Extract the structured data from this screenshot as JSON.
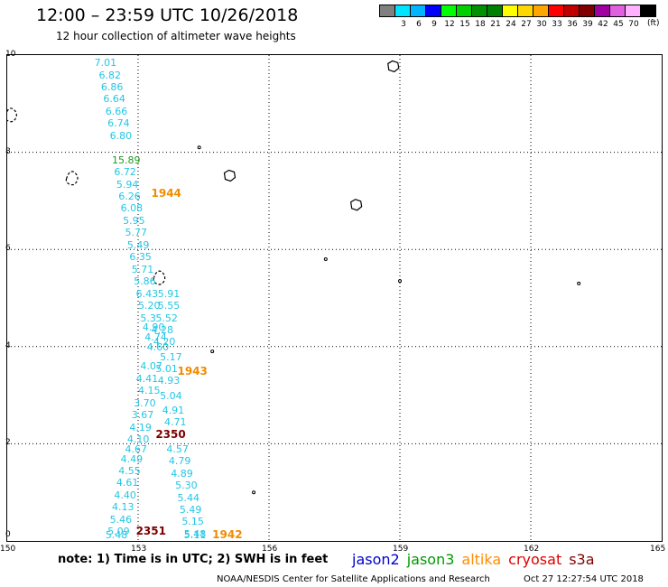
{
  "header": {
    "title": "12:00 – 23:59 UTC 10/26/2018",
    "subtitle": "12 hour collection of altimeter wave heights"
  },
  "colorbar": {
    "unit": "(ft)",
    "swatches": [
      {
        "color": "#808080",
        "label": ""
      },
      {
        "color": "#00e5ff",
        "label": "3"
      },
      {
        "color": "#00b4ff",
        "label": "6"
      },
      {
        "color": "#0000ff",
        "label": "9"
      },
      {
        "color": "#00ff00",
        "label": "12"
      },
      {
        "color": "#00d000",
        "label": "15"
      },
      {
        "color": "#009000",
        "label": "18"
      },
      {
        "color": "#008000",
        "label": "21"
      },
      {
        "color": "#ffff00",
        "label": "24"
      },
      {
        "color": "#ffd700",
        "label": "27"
      },
      {
        "color": "#ffa500",
        "label": "30"
      },
      {
        "color": "#ff0000",
        "label": "33"
      },
      {
        "color": "#c00000",
        "label": "36"
      },
      {
        "color": "#800000",
        "label": "39"
      },
      {
        "color": "#a000a0",
        "label": "42"
      },
      {
        "color": "#e060e0",
        "label": "45"
      },
      {
        "color": "#ffb0ff",
        "label": "70"
      },
      {
        "color": "#000000",
        "label": ""
      }
    ]
  },
  "map": {
    "lon_range": [
      150,
      165
    ],
    "lat_range": [
      0,
      10
    ],
    "lon_ticks": [
      "150",
      "153",
      "156",
      "159",
      "162",
      "165"
    ],
    "lat_ticks": [
      "0",
      "2",
      "4",
      "6",
      "8",
      "10"
    ],
    "colors": {
      "swh": "#22c6e6",
      "swh_green": "#1f9a1f",
      "altika_time": "#f08c00",
      "cryosat_time": "#7a0000"
    },
    "points": [
      {
        "lon": 152.0,
        "lat": 9.85,
        "text": "7.01",
        "cat": "swh"
      },
      {
        "lon": 152.1,
        "lat": 9.6,
        "text": "6.82",
        "cat": "swh"
      },
      {
        "lon": 152.15,
        "lat": 9.35,
        "text": "6.86",
        "cat": "swh"
      },
      {
        "lon": 152.2,
        "lat": 9.1,
        "text": "6.64",
        "cat": "swh"
      },
      {
        "lon": 152.25,
        "lat": 8.85,
        "text": "6.66",
        "cat": "swh"
      },
      {
        "lon": 152.3,
        "lat": 8.6,
        "text": "6.74",
        "cat": "swh"
      },
      {
        "lon": 152.35,
        "lat": 8.35,
        "text": "6.80",
        "cat": "swh"
      },
      {
        "lon": 152.4,
        "lat": 7.85,
        "text": "15.89",
        "cat": "swh_green"
      },
      {
        "lon": 152.45,
        "lat": 7.6,
        "text": "6.72",
        "cat": "swh"
      },
      {
        "lon": 152.5,
        "lat": 7.35,
        "text": "5.94",
        "cat": "swh"
      },
      {
        "lon": 152.55,
        "lat": 7.1,
        "text": "6.26",
        "cat": "swh"
      },
      {
        "lon": 152.6,
        "lat": 6.85,
        "text": "6.08",
        "cat": "swh"
      },
      {
        "lon": 152.65,
        "lat": 6.6,
        "text": "5.95",
        "cat": "swh"
      },
      {
        "lon": 152.7,
        "lat": 6.35,
        "text": "5.77",
        "cat": "swh"
      },
      {
        "lon": 152.75,
        "lat": 6.1,
        "text": "5.49",
        "cat": "swh"
      },
      {
        "lon": 152.8,
        "lat": 5.85,
        "text": "6.35",
        "cat": "swh"
      },
      {
        "lon": 152.85,
        "lat": 5.6,
        "text": "5.71",
        "cat": "swh"
      },
      {
        "lon": 152.9,
        "lat": 5.35,
        "text": "5.86",
        "cat": "swh"
      },
      {
        "lon": 152.95,
        "lat": 5.1,
        "text": "6.43",
        "cat": "swh"
      },
      {
        "lon": 153.0,
        "lat": 4.85,
        "text": "5.20",
        "cat": "swh"
      },
      {
        "lon": 153.05,
        "lat": 4.6,
        "text": "5.3",
        "cat": "swh"
      },
      {
        "lon": 153.1,
        "lat": 4.4,
        "text": "4.90",
        "cat": "swh"
      },
      {
        "lon": 153.15,
        "lat": 4.2,
        "text": "4.74",
        "cat": "swh"
      },
      {
        "lon": 153.2,
        "lat": 4.0,
        "text": "4.60",
        "cat": "swh"
      },
      {
        "lon": 153.05,
        "lat": 3.6,
        "text": "4.07",
        "cat": "swh"
      },
      {
        "lon": 152.95,
        "lat": 3.35,
        "text": "4.41",
        "cat": "swh"
      },
      {
        "lon": 153.0,
        "lat": 3.1,
        "text": "4.15",
        "cat": "swh"
      },
      {
        "lon": 152.9,
        "lat": 2.85,
        "text": "3.70",
        "cat": "swh"
      },
      {
        "lon": 152.85,
        "lat": 2.6,
        "text": "3.67",
        "cat": "swh"
      },
      {
        "lon": 152.8,
        "lat": 2.35,
        "text": "4.19",
        "cat": "swh"
      },
      {
        "lon": 152.75,
        "lat": 2.1,
        "text": "4.10",
        "cat": "swh"
      },
      {
        "lon": 152.7,
        "lat": 1.9,
        "text": "4.67",
        "cat": "swh"
      },
      {
        "lon": 152.6,
        "lat": 1.7,
        "text": "4.49",
        "cat": "swh"
      },
      {
        "lon": 152.55,
        "lat": 1.45,
        "text": "4.55",
        "cat": "swh"
      },
      {
        "lon": 152.5,
        "lat": 1.2,
        "text": "4.61",
        "cat": "swh"
      },
      {
        "lon": 152.45,
        "lat": 0.95,
        "text": "4.40",
        "cat": "swh"
      },
      {
        "lon": 152.4,
        "lat": 0.7,
        "text": "4.13",
        "cat": "swh"
      },
      {
        "lon": 152.35,
        "lat": 0.45,
        "text": "5.46",
        "cat": "swh"
      },
      {
        "lon": 152.3,
        "lat": 0.2,
        "text": "5.09",
        "cat": "swh"
      },
      {
        "lon": 152.25,
        "lat": -0.05,
        "text": "5.48",
        "cat": "swh"
      },
      {
        "lon": 153.45,
        "lat": 5.1,
        "text": "5.91",
        "cat": "swh"
      },
      {
        "lon": 153.45,
        "lat": 4.85,
        "text": "5.55",
        "cat": "swh"
      },
      {
        "lon": 153.4,
        "lat": 4.6,
        "text": "5.52",
        "cat": "swh"
      },
      {
        "lon": 153.3,
        "lat": 4.35,
        "text": "4.28",
        "cat": "swh"
      },
      {
        "lon": 153.35,
        "lat": 4.1,
        "text": "4.20",
        "cat": "swh"
      },
      {
        "lon": 153.5,
        "lat": 3.8,
        "text": "5.17",
        "cat": "swh"
      },
      {
        "lon": 153.4,
        "lat": 3.55,
        "text": "5.01",
        "cat": "swh"
      },
      {
        "lon": 153.45,
        "lat": 3.3,
        "text": "4.93",
        "cat": "swh"
      },
      {
        "lon": 153.5,
        "lat": 3.0,
        "text": "5.04",
        "cat": "swh"
      },
      {
        "lon": 153.55,
        "lat": 2.7,
        "text": "4.91",
        "cat": "swh"
      },
      {
        "lon": 153.6,
        "lat": 2.45,
        "text": "4.71",
        "cat": "swh"
      },
      {
        "lon": 153.65,
        "lat": 1.9,
        "text": "4.57",
        "cat": "swh"
      },
      {
        "lon": 153.7,
        "lat": 1.65,
        "text": "4.79",
        "cat": "swh"
      },
      {
        "lon": 153.75,
        "lat": 1.4,
        "text": "4.89",
        "cat": "swh"
      },
      {
        "lon": 153.85,
        "lat": 1.15,
        "text": "5.30",
        "cat": "swh"
      },
      {
        "lon": 153.9,
        "lat": 0.9,
        "text": "5.44",
        "cat": "swh"
      },
      {
        "lon": 153.95,
        "lat": 0.65,
        "text": "5.49",
        "cat": "swh"
      },
      {
        "lon": 154.0,
        "lat": 0.4,
        "text": "5.15",
        "cat": "swh"
      },
      {
        "lon": 154.05,
        "lat": 0.15,
        "text": "5.48",
        "cat": "swh"
      },
      {
        "lon": 154.05,
        "lat": -0.1,
        "text": "5.11",
        "cat": "swh"
      },
      {
        "lon": 153.3,
        "lat": 7.15,
        "text": "1944",
        "cat": "altika_time"
      },
      {
        "lon": 153.9,
        "lat": 3.5,
        "text": "1943",
        "cat": "altika_time"
      },
      {
        "lon": 154.7,
        "lat": -0.1,
        "text": "1942",
        "cat": "altika_time"
      },
      {
        "lon": 153.4,
        "lat": 2.2,
        "text": "2350",
        "cat": "cryosat_time"
      },
      {
        "lon": 152.95,
        "lat": 0.2,
        "text": "2351",
        "cat": "cryosat_time"
      }
    ],
    "islands": [
      {
        "name": "chuuk-atoll",
        "lon": 150.1,
        "lat": 8.75,
        "kind": "atoll"
      },
      {
        "name": "pohnpei-west",
        "lon": 151.5,
        "lat": 7.45,
        "kind": "atoll"
      },
      {
        "name": "kosrae-like",
        "lon": 155.1,
        "lat": 7.5,
        "kind": "island"
      },
      {
        "name": "kwajalein-like",
        "lon": 158.0,
        "lat": 6.9,
        "kind": "island"
      },
      {
        "name": "small-island-1",
        "lon": 157.3,
        "lat": 5.8,
        "kind": "dot"
      },
      {
        "name": "small-island-2",
        "lon": 158.85,
        "lat": 9.75,
        "kind": "island"
      },
      {
        "name": "small-island-3",
        "lon": 159.0,
        "lat": 5.35,
        "kind": "dot"
      },
      {
        "name": "small-island-4",
        "lon": 154.7,
        "lat": 3.9,
        "kind": "dot"
      },
      {
        "name": "small-island-5",
        "lon": 153.5,
        "lat": 5.4,
        "kind": "atoll"
      },
      {
        "name": "small-island-6",
        "lon": 154.4,
        "lat": 8.1,
        "kind": "dot"
      },
      {
        "name": "small-island-7",
        "lon": 163.1,
        "lat": 5.3,
        "kind": "dot"
      },
      {
        "name": "small-island-8",
        "lon": 155.65,
        "lat": 1.0,
        "kind": "dot"
      }
    ]
  },
  "footer": {
    "note": "note: 1) Time is in UTC; 2) SWH is in feet",
    "legend": [
      {
        "label": "jason2",
        "color": "#0000cc"
      },
      {
        "label": "jason3",
        "color": "#009900"
      },
      {
        "label": "altika",
        "color": "#ff8c00"
      },
      {
        "label": "cryosat",
        "color": "#dd0000"
      },
      {
        "label": "s3a",
        "color": "#800000"
      }
    ],
    "credit": "NOAA/NESDIS Center for Satellite Applications and Research",
    "timestamp": "Oct 27 12:27:54 UTC 2018"
  }
}
